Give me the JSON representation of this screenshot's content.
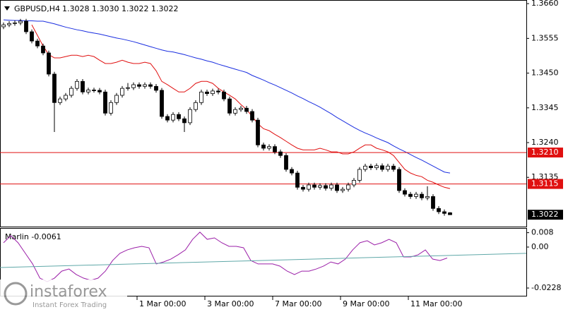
{
  "chart_data": [
    {
      "type": "candlestick",
      "title": "GBPUSD,H4",
      "header_values": [
        "1.3028",
        "1.3030",
        "1.3022",
        "1.3022"
      ],
      "open": [
        1.359,
        1.3596,
        1.36,
        1.3602,
        1.3607,
        1.3575,
        1.3547,
        1.3532,
        1.3511,
        1.3447,
        1.3361,
        1.3372,
        1.3383,
        1.3404,
        1.3425,
        1.3393,
        1.3399,
        1.3398,
        1.3393,
        1.3329,
        1.3361,
        1.3383,
        1.3404,
        1.3406,
        1.3415,
        1.341,
        1.3415,
        1.341,
        1.3398,
        1.3319,
        1.3308,
        1.3325,
        1.3312,
        1.33,
        1.334,
        1.3361,
        1.3393,
        1.3388,
        1.3396,
        1.3393,
        1.3372,
        1.3329,
        1.334,
        1.3344,
        1.3334,
        1.3308,
        1.3233,
        1.3223,
        1.3228,
        1.3212,
        1.3201,
        1.3159,
        1.3148,
        1.3105,
        1.3099,
        1.3112,
        1.3105,
        1.311,
        1.3102,
        1.3112,
        1.3095,
        1.3099,
        1.3112,
        1.3126,
        1.3159,
        1.3169,
        1.3164,
        1.317,
        1.3159,
        1.3169,
        1.3159,
        1.3095,
        1.3084,
        1.3077,
        1.3084,
        1.3073,
        1.3077,
        1.3041,
        1.3031,
        1.3028
      ],
      "high": [
        1.3603,
        1.3607,
        1.3609,
        1.3614,
        1.3614,
        1.3582,
        1.3554,
        1.3539,
        1.3518,
        1.3454,
        1.3379,
        1.339,
        1.3411,
        1.3432,
        1.3432,
        1.3406,
        1.3406,
        1.3405,
        1.34,
        1.3368,
        1.339,
        1.3411,
        1.342,
        1.3422,
        1.3422,
        1.3422,
        1.3422,
        1.3417,
        1.3405,
        1.3326,
        1.3332,
        1.3332,
        1.3319,
        1.3347,
        1.3368,
        1.34,
        1.34,
        1.3403,
        1.3403,
        1.34,
        1.3379,
        1.3347,
        1.3351,
        1.3351,
        1.3341,
        1.3315,
        1.324,
        1.3235,
        1.3235,
        1.3219,
        1.3208,
        1.3166,
        1.3155,
        1.3112,
        1.3119,
        1.3119,
        1.3117,
        1.3117,
        1.3119,
        1.3119,
        1.3106,
        1.3119,
        1.3133,
        1.3166,
        1.3176,
        1.3176,
        1.3177,
        1.3177,
        1.3176,
        1.3176,
        1.3166,
        1.3102,
        1.3091,
        1.3091,
        1.3091,
        1.3108,
        1.3084,
        1.3048,
        1.3038,
        1.303
      ],
      "low": [
        1.3583,
        1.3589,
        1.3593,
        1.3595,
        1.3568,
        1.354,
        1.3525,
        1.3504,
        1.344,
        1.3272,
        1.3354,
        1.3365,
        1.3376,
        1.3397,
        1.3386,
        1.3386,
        1.3391,
        1.3386,
        1.3322,
        1.3322,
        1.3354,
        1.3376,
        1.3397,
        1.3399,
        1.3403,
        1.3403,
        1.3403,
        1.3391,
        1.3312,
        1.3301,
        1.3301,
        1.3305,
        1.3272,
        1.3293,
        1.3333,
        1.3354,
        1.3381,
        1.3381,
        1.3386,
        1.3365,
        1.3322,
        1.3322,
        1.3333,
        1.3327,
        1.3301,
        1.3226,
        1.3216,
        1.3216,
        1.3205,
        1.3194,
        1.3152,
        1.3141,
        1.3098,
        1.3092,
        1.3092,
        1.3098,
        1.3098,
        1.3095,
        1.3095,
        1.3088,
        1.3088,
        1.3092,
        1.3105,
        1.3119,
        1.3152,
        1.3157,
        1.3157,
        1.3152,
        1.3152,
        1.3152,
        1.3088,
        1.3077,
        1.307,
        1.307,
        1.3066,
        1.3066,
        1.3034,
        1.3024,
        1.3019,
        1.3022
      ],
      "close": [
        1.3596,
        1.36,
        1.3602,
        1.3607,
        1.3575,
        1.3547,
        1.3532,
        1.3511,
        1.3447,
        1.3361,
        1.3372,
        1.3383,
        1.3404,
        1.3425,
        1.3393,
        1.3399,
        1.3398,
        1.3393,
        1.3329,
        1.3361,
        1.3383,
        1.3404,
        1.3406,
        1.3415,
        1.341,
        1.3415,
        1.341,
        1.3398,
        1.3319,
        1.3308,
        1.3325,
        1.3312,
        1.33,
        1.334,
        1.3361,
        1.3393,
        1.3388,
        1.3396,
        1.3393,
        1.3372,
        1.3329,
        1.334,
        1.3344,
        1.3334,
        1.3308,
        1.3233,
        1.3223,
        1.3228,
        1.3212,
        1.3201,
        1.3159,
        1.3148,
        1.3105,
        1.3099,
        1.3112,
        1.3105,
        1.311,
        1.3102,
        1.3112,
        1.3095,
        1.3099,
        1.3112,
        1.3126,
        1.3159,
        1.3169,
        1.3164,
        1.317,
        1.3159,
        1.3169,
        1.3159,
        1.3095,
        1.3084,
        1.3077,
        1.3084,
        1.3073,
        1.3077,
        1.3041,
        1.3031,
        1.3026,
        1.3022
      ],
      "overlays": [
        {
          "color": "#e01010",
          "values": [
            null,
            null,
            null,
            null,
            null,
            1.3596,
            1.3564,
            1.3532,
            1.3506,
            1.3496,
            1.3496,
            1.35,
            1.3504,
            1.3504,
            1.35,
            1.3504,
            1.35,
            1.3489,
            1.3479,
            1.3479,
            1.3483,
            1.3489,
            1.3483,
            1.3479,
            1.3479,
            1.3483,
            1.3479,
            1.3457,
            1.3425,
            1.3415,
            1.3404,
            1.3393,
            1.3393,
            1.3404,
            1.3419,
            1.3425,
            1.3425,
            1.3419,
            1.3404,
            1.3393,
            1.3383,
            1.3372,
            1.3355,
            1.334,
            1.3319,
            1.3297,
            1.3282,
            1.3276,
            1.3265,
            1.3255,
            1.3244,
            1.3233,
            1.3223,
            1.3218,
            1.3218,
            1.3218,
            1.3223,
            1.3218,
            1.3212,
            1.3212,
            1.3206,
            1.3206,
            1.3212,
            1.3223,
            1.3233,
            1.3233,
            1.3223,
            1.3218,
            1.3212,
            1.3201,
            1.318,
            1.3159,
            1.3148,
            1.3141,
            1.3137,
            1.3126,
            1.312,
            1.3112,
            1.3105,
            1.3101
          ]
        },
        {
          "color": "#1a2ee0",
          "values": [
            1.3611,
            1.361,
            1.3609,
            1.3609,
            1.3608,
            1.3608,
            1.3607,
            1.3607,
            1.3603,
            1.3599,
            1.3594,
            1.3589,
            1.3585,
            1.3581,
            1.3578,
            1.3574,
            1.3571,
            1.3568,
            1.3564,
            1.356,
            1.3556,
            1.3553,
            1.3549,
            1.3545,
            1.354,
            1.3535,
            1.353,
            1.3525,
            1.352,
            1.3516,
            1.3514,
            1.351,
            1.3506,
            1.3501,
            1.3496,
            1.3492,
            1.3487,
            1.3483,
            1.3477,
            1.3472,
            1.3467,
            1.3462,
            1.3457,
            1.3452,
            1.3443,
            1.3436,
            1.3429,
            1.3421,
            1.3414,
            1.3406,
            1.3398,
            1.339,
            1.3381,
            1.3373,
            1.3364,
            1.3356,
            1.3347,
            1.3337,
            1.3327,
            1.3316,
            1.3306,
            1.3296,
            1.3286,
            1.3277,
            1.3269,
            1.3262,
            1.3254,
            1.3247,
            1.324,
            1.323,
            1.3221,
            1.3213,
            1.3204,
            1.3195,
            1.3187,
            1.3178,
            1.3169,
            1.316,
            1.3151,
            1.3148
          ]
        }
      ],
      "ylim": [
        1.2984,
        1.3671
      ],
      "yticks": [
        {
          "value": 1.366,
          "label": "1.3660"
        },
        {
          "value": 1.3555,
          "label": "1.3555"
        },
        {
          "value": 1.345,
          "label": "1.3450"
        },
        {
          "value": 1.3345,
          "label": "1.3345"
        },
        {
          "value": 1.324,
          "label": "1.3240"
        },
        {
          "value": 1.3135,
          "label": "1.3135"
        }
      ],
      "hlines": [
        {
          "value": 1.321,
          "label": "1.3210",
          "color": "#e01010"
        },
        {
          "value": 1.3115,
          "label": "1.3115",
          "color": "#e01010"
        }
      ],
      "last_price": {
        "value": 1.3022,
        "label": "1.3022"
      },
      "x_labels": [
        "1 Mar 00:00",
        "3 Mar 00:00",
        "7 Mar 00:00",
        "9 Mar 00:00",
        "11 Mar 00:00"
      ]
    },
    {
      "type": "line",
      "title": "Marlin -0.0061",
      "series": [
        {
          "color": "#9b1fa8",
          "values": [
            0.0024,
            0.0063,
            0.0024,
            -0.0035,
            -0.0094,
            -0.0173,
            -0.0193,
            -0.0173,
            -0.0134,
            -0.0122,
            -0.0153,
            -0.0173,
            -0.0185,
            -0.0173,
            -0.0134,
            -0.0075,
            -0.0035,
            -0.0016,
            -0.0004,
            0.0004,
            -0.0004,
            -0.0094,
            -0.0083,
            -0.0067,
            -0.0043,
            -0.0016,
            0.0043,
            0.0083,
            0.0043,
            0.0051,
            0.0024,
            0.0004,
            0.0004,
            -0.0004,
            -0.0075,
            -0.0094,
            -0.0094,
            -0.0094,
            -0.0106,
            -0.0134,
            -0.0153,
            -0.0134,
            -0.0134,
            -0.0122,
            -0.0106,
            -0.0083,
            -0.0094,
            -0.0067,
            -0.0016,
            0.0024,
            0.0035,
            0.0012,
            0.0024,
            0.0043,
            0.0024,
            -0.0055,
            -0.0055,
            -0.0043,
            -0.0016,
            -0.0067,
            -0.0075,
            -0.0061
          ]
        },
        {
          "color": "#5fa8a8",
          "values": [
            -0.0114,
            -0.0035
          ]
        }
      ],
      "ylim": [
        -0.0275,
        0.0106
      ],
      "yticks": [
        0.008,
        {
          "value": 0,
          "label": "0.00"
        },
        -0.0228
      ]
    }
  ],
  "watermark": {
    "brand": "instaforex",
    "tagline": "Instant Forex Trading"
  }
}
